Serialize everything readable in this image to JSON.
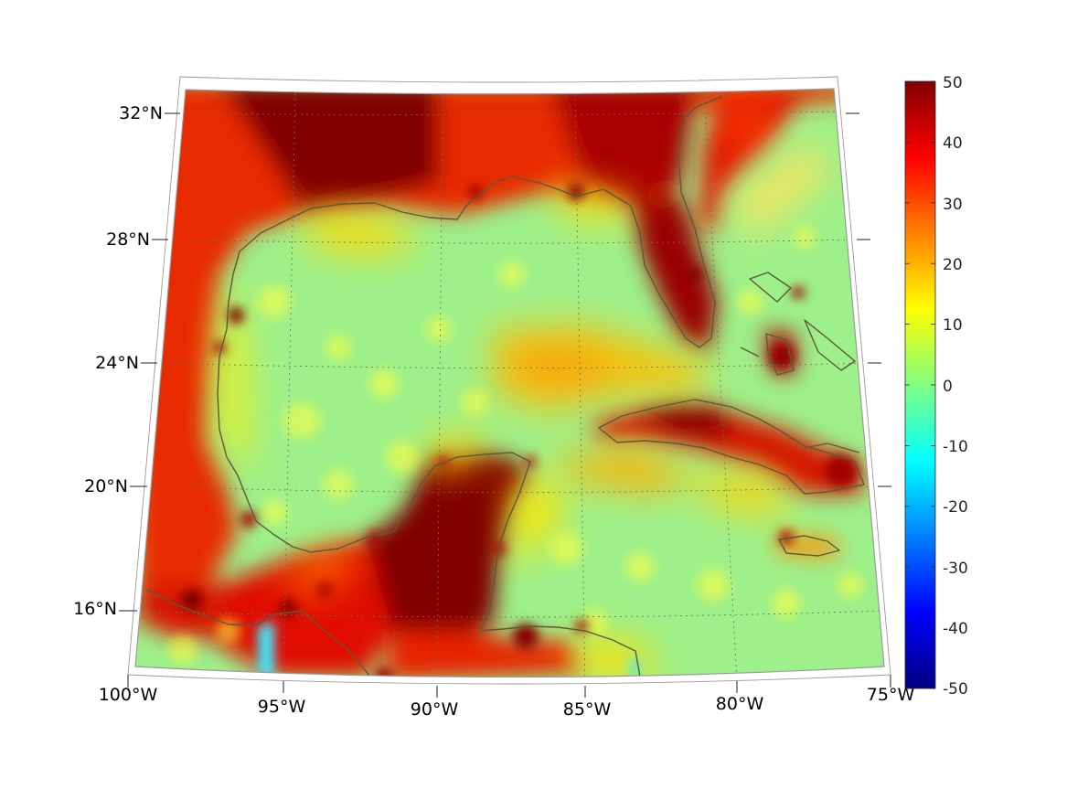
{
  "map": {
    "lon_labels": [
      "100°W",
      "95°W",
      "90°W",
      "85°W",
      "80°W",
      "75°W"
    ],
    "lat_labels": [
      "32°N",
      "28°N",
      "24°N",
      "20°N",
      "16°N"
    ],
    "extent": {
      "lon_min": -100,
      "lon_max": -75,
      "lat_min": 14,
      "lat_max": 33
    },
    "projection": "lambert-conic",
    "field_scale_note": "",
    "colors": {
      "coastline": "#5a5a3a",
      "frame": "#9a9a9a",
      "grid": "#6b6b6b"
    }
  },
  "colorbar": {
    "colormap": "jet",
    "ticks": [
      "50",
      "40",
      "30",
      "20",
      "10",
      "0",
      "-10",
      "-20",
      "-30",
      "-40",
      "-50"
    ],
    "min": -50,
    "max": 50
  }
}
